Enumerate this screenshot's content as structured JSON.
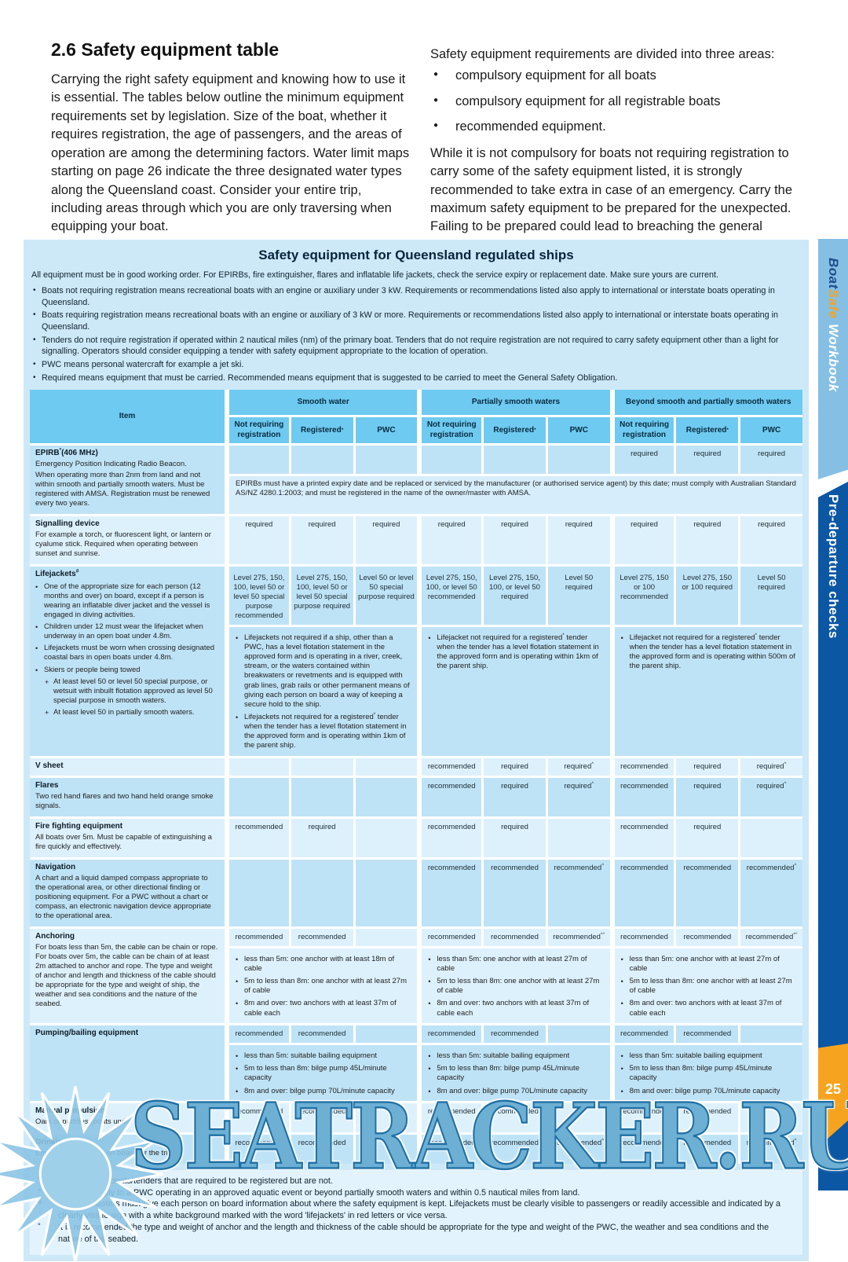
{
  "page": {
    "heading": "2.6 Safety equipment table",
    "intro_left": "Carrying the right safety equipment and knowing how to use it is essential. The tables below outline the minimum equipment requirements set by legislation. Size of the boat, whether it requires registration, the age of passengers, and the areas of operation are among the determining factors. Water limit maps starting on page 26 indicate the three designated water types along the Queensland coast. Consider your entire trip, including areas through which you are only traversing when equipping your boat.",
    "intro_right_lead": "Safety equipment requirements are divided into three areas:",
    "intro_right_bullets": [
      "compulsory equipment for all boats",
      "compulsory equipment for all registrable boats",
      "recommended equipment."
    ],
    "intro_right_para": "While it is not compulsory for boats not requiring registration to carry some of the safety equipment listed, it is strongly recommended to take extra in case of an emergency. Carry the maximum safety equipment to be prepared for the unexpected. Failing to be prepared could lead to breaching the general safety obligation.",
    "page_number": "25"
  },
  "sidebar": {
    "brand_boat": "Boat",
    "brand_safe": "Safe",
    "brand_workbook": "Workbook",
    "section": "Pre-departure checks"
  },
  "watermark": {
    "text": "SEATRACKER.RU"
  },
  "colors": {
    "header_cell": "#6ecaf0",
    "row_dark": "#bfe3f6",
    "row_light": "#ddf1fc",
    "panel_bg": "#cde9f8",
    "sidebar_light": "#85bfe4",
    "sidebar_dark": "#0b57a4",
    "page_tab_orange": "#f6a41f",
    "watermark_blue": "#61a9d0"
  },
  "table": {
    "title": "Safety equipment for Queensland regulated ships",
    "preamble": "All equipment must be in good working order. For EPIRBs, fire extinguisher, flares and inflatable life jackets, check the service expiry or replacement date. Make sure yours are current.",
    "notes": [
      "Boats not requiring registration means recreational boats with an engine or auxiliary under 3 kW. Requirements or recommendations listed also apply to international or interstate boats operating in Queensland.",
      "Boats requiring registration means recreational boats with an engine or auxiliary of 3 kW or more. Requirements or recommendations listed also apply to international or interstate boats operating in Queensland.",
      "Tenders do not require registration if operated within 2 nautical miles (nm) of the primary boat. Tenders that do not require registration are not required to carry safety equipment other than a light for signalling. Operators should consider equipping a tender with safety equipment appropriate to the location of operation.",
      "PWC means personal watercraft for example a jet ski.",
      "Required means equipment that must be carried. Recommended means equipment that is suggested to be carried to meet the General Safety Obligation."
    ],
    "item_header": "Item",
    "col_groups": [
      "Smooth water",
      "Partially smooth waters",
      "Beyond smooth and partially smooth waters"
    ],
    "sub_cols": [
      "Not requiring registration",
      "Registered*",
      "PWC"
    ],
    "rows": [
      {
        "id": "epirb",
        "title": "EPIRB*(406 MHz)",
        "desc": [
          {
            "t": "p",
            "x": "Emergency Position Indicating Radio Beacon."
          },
          {
            "t": "p",
            "x": "When operating more than 2nm from land and not within smooth and partially smooth waters. Must be registered with AMSA. Registration must be renewed every two years."
          }
        ],
        "cells": [
          "",
          "",
          "",
          "",
          "",
          "",
          "required",
          "required",
          "required"
        ],
        "span_note": "EPIRBs must have a printed expiry date and be replaced or serviced by the manufacturer (or authorised service agent) by this date; must comply with Australian Standard AS/NZ 4280.1:2003; and must be registered in the name of the owner/master with AMSA."
      },
      {
        "id": "signalling",
        "title": "Signalling device",
        "desc": [
          {
            "t": "p",
            "x": "For example a torch, or fluorescent light, or lantern or cyalume stick. Required when operating between sunset and sunrise."
          }
        ],
        "cells": [
          "required",
          "required",
          "required",
          "required",
          "required",
          "required",
          "required",
          "required",
          "required"
        ]
      },
      {
        "id": "lifejackets",
        "title": "Lifejackets#",
        "desc": [
          {
            "t": "b",
            "x": "One of the appropriate size for each person (12 months and over) on board, except if a person is wearing an inflatable diver jacket and the vessel is engaged in diving activities."
          },
          {
            "t": "b",
            "x": "Children under 12 must wear the lifejacket when underway in an open boat under 4.8m."
          },
          {
            "t": "b",
            "x": "Lifejackets must be worn when crossing designated coastal bars in open boats under 4.8m."
          },
          {
            "t": "b",
            "x": "Skiers or people being towed"
          },
          {
            "t": "sb",
            "x": "At least level 50 or level 50 special purpose, or wetsuit with inbuilt flotation approved as level 50 special purpose in smooth waters."
          },
          {
            "t": "sb",
            "x": "At least level 50 in partially smooth waters."
          }
        ],
        "cells": [
          "Level 275, 150, 100, level 50 or level 50 special purpose recommended",
          "Level 275, 150, 100, level 50 or level 50 special purpose required",
          "Level 50 or level 50 special purpose required",
          "Level 275, 150, 100, or level 50 recommended",
          "Level 275, 150, 100, or level 50 required",
          "Level 50 required",
          "Level 275, 150 or 100 recommended",
          "Level 275, 150 or 100 required",
          "Level 50 required"
        ],
        "group_notes": [
          [
            "Lifejackets not required if a ship, other than a PWC, has a level flotation statement in the approved form and is operating in a river, creek, stream, or the waters contained within breakwaters or revetments and is equipped with grab lines, grab rails or other permanent means of giving each person on board a way of keeping a secure hold to the ship.",
            "Lifejackets not required for a registered* tender when the tender has a level flotation statement in the approved form and is operating within 1km of the parent ship."
          ],
          [
            "Lifejacket not required for a registered* tender when the tender has a level flotation statement in the approved form and is operating within 1km of the parent ship."
          ],
          [
            "Lifejacket not required for a registered* tender when the tender has a level flotation statement in the approved form and is operating within 500m of the parent ship."
          ]
        ]
      },
      {
        "id": "v-sheet",
        "title": "V sheet",
        "desc": [],
        "cells": [
          "",
          "",
          "",
          "recommended",
          "required",
          "required^",
          "recommended",
          "required",
          "required^"
        ]
      },
      {
        "id": "flares",
        "title": "Flares",
        "desc": [
          {
            "t": "p",
            "x": "Two red hand flares and two hand held orange smoke signals."
          }
        ],
        "cells": [
          "",
          "",
          "",
          "recommended",
          "required",
          "required^",
          "recommended",
          "required",
          "required^"
        ]
      },
      {
        "id": "fire-fighting",
        "title": "Fire fighting equipment",
        "desc": [
          {
            "t": "p",
            "x": "All boats over 5m. Must be capable of extinguishing a fire quickly and effectively."
          }
        ],
        "cells": [
          "recommended",
          "required",
          "",
          "recommended",
          "required",
          "",
          "recommended",
          "required",
          ""
        ]
      },
      {
        "id": "navigation",
        "title": "Navigation",
        "desc": [
          {
            "t": "p",
            "x": "A chart and a liquid damped compass appropriate to the operational area, or other directional finding or positioning equipment. For a PWC without a chart or compass, an electronic navigation device appropriate to the operational area."
          }
        ],
        "cells": [
          "",
          "",
          "",
          "recommended",
          "recommended",
          "recommended^",
          "recommended",
          "recommended",
          "recommended^"
        ]
      },
      {
        "id": "anchoring",
        "title": "Anchoring",
        "desc": [
          {
            "t": "p",
            "x": "For boats less than 5m, the cable can be chain or rope. For boats over 5m, the cable can be chain of at least 2m attached to anchor and rope. The type and weight of anchor and length and thickness of the cable should be appropriate for the type and weight of ship, the weather and sea conditions and the nature of the seabed."
          }
        ],
        "cells": [
          "recommended",
          "recommended",
          "",
          "recommended",
          "recommended",
          "recommended^°",
          "recommended",
          "recommended",
          "recommended^°"
        ],
        "group_notes": [
          [
            "less than 5m: one anchor with at least 18m of cable",
            "5m to less than 8m: one anchor with at least 27m of cable",
            "8m and over: two anchors with at least 37m of cable each"
          ],
          [
            "less than 5m: one anchor with at least 27m of cable",
            "5m to less than 8m: one anchor with at least 27m of cable",
            "8m and over: two anchors with at least 37m of cable each"
          ],
          [
            "less than 5m: one anchor with at least 27m of cable",
            "5m to less than 8m: one anchor with at least 27m of cable",
            "8m and over: two anchors with at least 37m of cable each"
          ]
        ]
      },
      {
        "id": "pumping-bailing",
        "title": "Pumping/bailing equipment",
        "desc": [],
        "cells": [
          "recommended",
          "recommended",
          "",
          "recommended",
          "recommended",
          "",
          "recommended",
          "recommended",
          ""
        ],
        "group_notes": [
          [
            "less than 5m: suitable bailing equipment",
            "5m to less than 8m: bilge pump 45L/minute capacity",
            "8m and over: bilge pump 70L/minute capacity"
          ],
          [
            "less than 5m: suitable bailing equipment",
            "5m to less than 8m: bilge pump 45L/minute capacity",
            "8m and over: bilge pump 70L/minute capacity"
          ],
          [
            "less than 5m: suitable bailing equipment",
            "5m to less than 8m: bilge pump 45L/minute capacity",
            "8m and over: bilge pump 70L/minute capacity"
          ]
        ]
      },
      {
        "id": "manual-propulsion",
        "title": "Manual propulsion",
        "desc": [
          {
            "t": "p",
            "x": "Oars or paddles (boats under 6m)."
          }
        ],
        "cells": [
          "recommended",
          "recommended",
          "",
          "recommended",
          "recommended",
          "",
          "recommended",
          "recommended",
          ""
        ]
      },
      {
        "id": "drinking-water",
        "title": "Drinking water",
        "desc": [
          {
            "t": "p",
            "x": "Enough for everyone on board for the trip."
          }
        ],
        "cells": [
          "recommended",
          "recommended",
          "",
          "recommended",
          "recommended",
          "recommended^",
          "recommended",
          "recommended",
          "recommended^"
        ]
      }
    ],
    "footnotes": [
      {
        "sym": "*",
        "text": "Also includes boats/tenders that are required to be registered but are not."
      },
      {
        "sym": "^",
        "text": "Does not apply to a PWC operating in an approved aquatic event or beyond partially smooth waters and within 0.5 nautical miles from land."
      },
      {
        "sym": "#",
        "text": "Owners/masters must give each person on board information about where the safety equipment is kept. Lifejackets must be clearly visible to passengers or readily accessible and indicated by a clearly visible sign with a white background marked with the word 'lifejackets' in red letters or vice versa."
      },
      {
        "sym": "°",
        "text": "It is recommended the type and weight of anchor and the length and thickness of the cable should be appropriate for the type and weight of the PWC, the weather and sea conditions and the nature of the seabed."
      }
    ]
  }
}
